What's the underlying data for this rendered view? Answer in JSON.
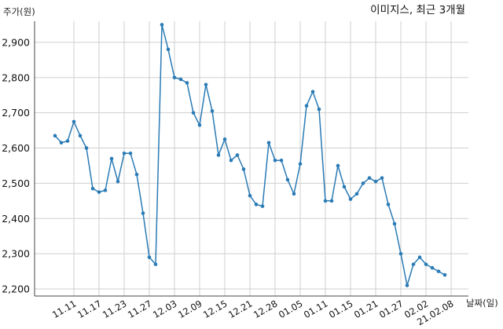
{
  "chart_data": {
    "type": "line",
    "title": "이미지스, 최근 3개월",
    "xlabel": "날짜(일)",
    "ylabel": "주가(원)",
    "ylim": [
      2180,
      2960
    ],
    "yticks": [
      2200,
      2300,
      2400,
      2500,
      2600,
      2700,
      2800,
      2900
    ],
    "ytick_labels": [
      "2,200",
      "2,300",
      "2,400",
      "2,500",
      "2,600",
      "2,700",
      "2,800",
      "2,900"
    ],
    "grid": true,
    "color": "#2a7bb5",
    "xtick_labels": [
      "11.11",
      "11.17",
      "11.23",
      "11.27",
      "12.03",
      "12.09",
      "12.15",
      "12.21",
      "12.28",
      "01.05",
      "01.11",
      "01.15",
      "01.21",
      "01.27",
      "02.02",
      "21.02.08"
    ],
    "xtick_index": [
      3,
      7,
      11,
      15,
      19,
      23,
      27,
      31,
      35,
      39,
      43,
      47,
      51,
      55,
      59,
      63
    ],
    "series": [
      {
        "values": [
          2635,
          2615,
          2620,
          2675,
          2635,
          2600,
          2485,
          2475,
          2480,
          2570,
          2505,
          2585,
          2585,
          2525,
          2415,
          2290,
          2270,
          2950,
          2880,
          2800,
          2795,
          2785,
          2700,
          2665,
          2780,
          2705,
          2580,
          2625,
          2565,
          2580,
          2540,
          2465,
          2440,
          2435,
          2615,
          2565,
          2565,
          2510,
          2470,
          2555,
          2720,
          2760,
          2710,
          2450,
          2450,
          2550,
          2490,
          2455,
          2470,
          2500,
          2515,
          2505,
          2515,
          2440,
          2385,
          2300,
          2210,
          2270,
          2290,
          2270,
          2260,
          2250,
          2240
        ]
      }
    ]
  }
}
